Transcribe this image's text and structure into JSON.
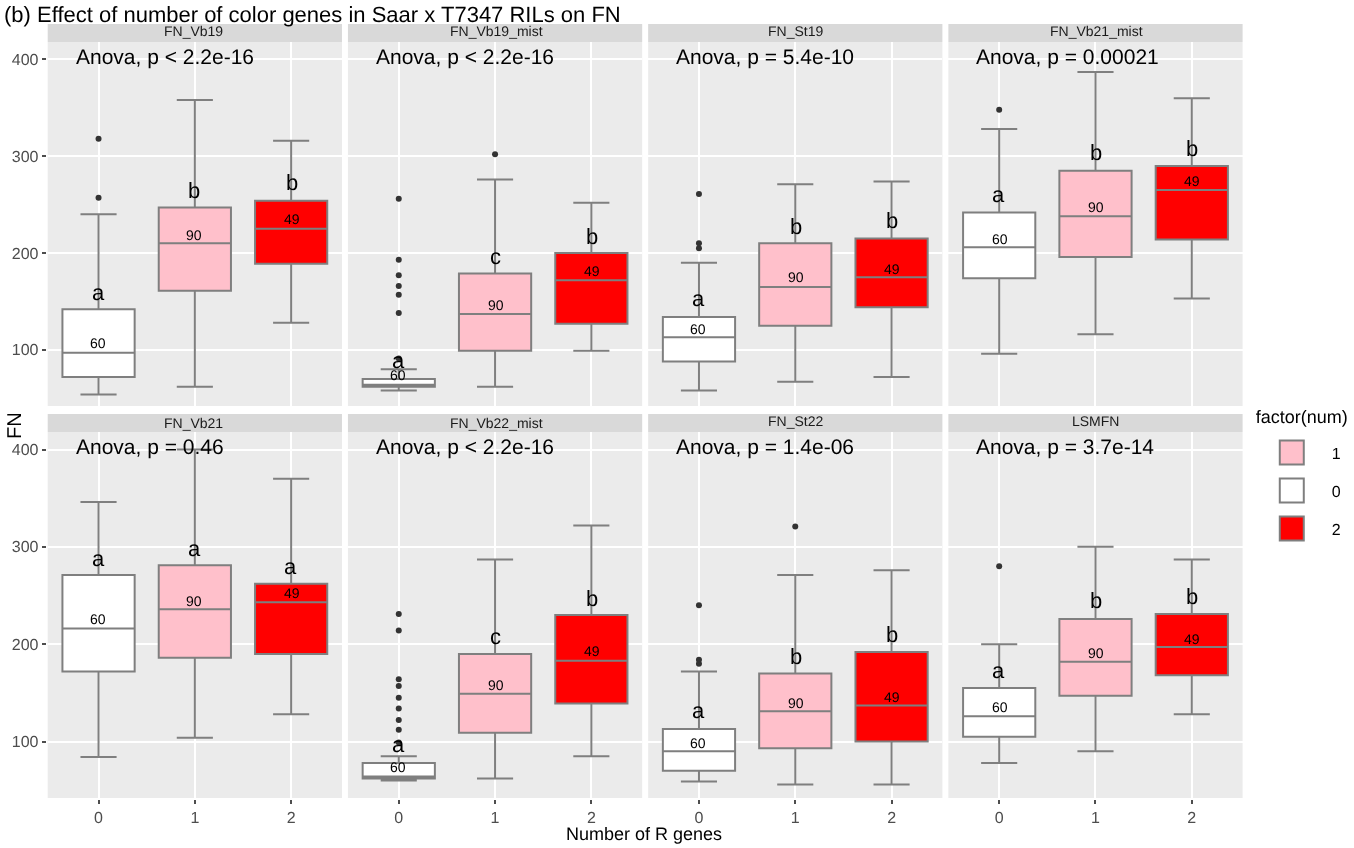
{
  "chart_data": [
    {
      "type": "box",
      "title": "FN_Vb19",
      "categories": [
        "0",
        "1",
        "2"
      ],
      "ylim": [
        42,
        418
      ],
      "yticks": [
        100,
        200,
        300,
        400
      ],
      "grid": true,
      "tick_labels": "y",
      "ylabel": "FN",
      "legend": "right",
      "legend_title": "factor(num)",
      "series": [
        {
          "name": "1",
          "color": "#ffc0cb",
          "boxes": [
            null,
            {
              "low": 62,
              "q1": 161,
              "median": 210,
              "q3": 247,
              "high": 358
            },
            null
          ]
        },
        {
          "name": "0",
          "color": "#ffffff",
          "boxes": [
            {
              "low": 54,
              "q1": 72,
              "median": 97,
              "q3": 142,
              "high": 240,
              "outliers": [
                257,
                318
              ]
            },
            null,
            null
          ]
        },
        {
          "name": "2",
          "color": "#ff0000",
          "boxes": [
            null,
            null,
            {
              "low": 128,
              "q1": 189,
              "median": 225,
              "q3": 254,
              "high": 316
            }
          ]
        }
      ],
      "annotations": [
        "Anova, p < 2.2e-16",
        "(b) Effect of number of color genes in Saar x T7347 RILs on FN",
        {
          "text": "a",
          "x": "0",
          "y": 142
        },
        {
          "text": "b",
          "x": "1",
          "y": 247
        },
        {
          "text": "b",
          "x": "2",
          "y": 254
        },
        {
          "text": "60",
          "x": "0",
          "y": 97
        },
        {
          "text": "90",
          "x": "1",
          "y": 210
        },
        {
          "text": "49",
          "x": "2",
          "y": 225
        }
      ]
    },
    {
      "type": "box",
      "title": "FN_Vb19_mist",
      "categories": [
        "0",
        "1",
        "2"
      ],
      "ylim": [
        42,
        418
      ],
      "yticks": [
        100,
        200,
        300,
        400
      ],
      "grid": true,
      "tick_labels": false,
      "series": [
        {
          "color": "#ffc0cb",
          "boxes": [
            null,
            {
              "low": 62,
              "q1": 99,
              "median": 137,
              "q3": 179,
              "high": 276,
              "outliers": [
                302
              ]
            },
            null
          ]
        },
        {
          "color": "#ffffff",
          "boxes": [
            {
              "low": 58,
              "q1": 62,
              "median": 64,
              "q3": 70,
              "high": 80,
              "outliers": [
                91,
                138,
                157,
                166,
                177,
                193,
                256
              ]
            },
            null,
            null
          ]
        },
        {
          "color": "#ff0000",
          "boxes": [
            null,
            null,
            {
              "low": 99,
              "q1": 127,
              "median": 172,
              "q3": 200,
              "high": 252
            }
          ]
        }
      ],
      "annotations": [
        "Anova, p < 2.2e-16",
        {
          "text": "a",
          "x": "0",
          "y": 70
        },
        {
          "text": "c",
          "x": "1",
          "y": 179
        },
        {
          "text": "b",
          "x": "2",
          "y": 200
        },
        {
          "text": "60",
          "x": "0",
          "y": 64
        },
        {
          "text": "90",
          "x": "1",
          "y": 137
        },
        {
          "text": "49",
          "x": "2",
          "y": 172
        }
      ]
    },
    {
      "type": "box",
      "title": "FN_St19",
      "categories": [
        "0",
        "1",
        "2"
      ],
      "ylim": [
        42,
        418
      ],
      "yticks": [
        100,
        200,
        300,
        400
      ],
      "grid": true,
      "tick_labels": false,
      "series": [
        {
          "color": "#ffc0cb",
          "boxes": [
            null,
            {
              "low": 67,
              "q1": 125,
              "median": 165,
              "q3": 210,
              "high": 271
            },
            null
          ]
        },
        {
          "color": "#ffffff",
          "boxes": [
            {
              "low": 58,
              "q1": 88,
              "median": 113,
              "q3": 134,
              "high": 190,
              "outliers": [
                205,
                210,
                261
              ]
            },
            null,
            null
          ]
        },
        {
          "color": "#ff0000",
          "boxes": [
            null,
            null,
            {
              "low": 72,
              "q1": 144,
              "median": 175,
              "q3": 215,
              "high": 274
            }
          ]
        }
      ],
      "annotations": [
        "Anova, p = 5.4e-10",
        {
          "text": "a",
          "x": "0",
          "y": 134
        },
        {
          "text": "b",
          "x": "1",
          "y": 210
        },
        {
          "text": "b",
          "x": "2",
          "y": 215
        },
        {
          "text": "60",
          "x": "0",
          "y": 113
        },
        {
          "text": "90",
          "x": "1",
          "y": 165
        },
        {
          "text": "49",
          "x": "2",
          "y": 175
        }
      ]
    },
    {
      "type": "box",
      "title": "FN_Vb21_mist",
      "categories": [
        "0",
        "1",
        "2"
      ],
      "ylim": [
        42,
        418
      ],
      "yticks": [
        100,
        200,
        300,
        400
      ],
      "grid": true,
      "tick_labels": false,
      "series": [
        {
          "color": "#ffc0cb",
          "boxes": [
            null,
            {
              "low": 116,
              "q1": 196,
              "median": 238,
              "q3": 285,
              "high": 387
            },
            null
          ]
        },
        {
          "color": "#ffffff",
          "boxes": [
            {
              "low": 96,
              "q1": 174,
              "median": 206,
              "q3": 242,
              "high": 328,
              "outliers": [
                348
              ]
            },
            null,
            null
          ]
        },
        {
          "color": "#ff0000",
          "boxes": [
            null,
            null,
            {
              "low": 153,
              "q1": 214,
              "median": 265,
              "q3": 290,
              "high": 360
            }
          ]
        }
      ],
      "annotations": [
        "Anova, p = 0.00021",
        {
          "text": "a",
          "x": "0",
          "y": 242
        },
        {
          "text": "b",
          "x": "1",
          "y": 285
        },
        {
          "text": "b",
          "x": "2",
          "y": 290
        },
        {
          "text": "60",
          "x": "0",
          "y": 206
        },
        {
          "text": "90",
          "x": "1",
          "y": 238
        },
        {
          "text": "49",
          "x": "2",
          "y": 265
        }
      ]
    },
    {
      "type": "box",
      "title": "FN_Vb21",
      "categories": [
        "0",
        "1",
        "2"
      ],
      "ylim": [
        42,
        418
      ],
      "yticks": [
        100,
        200,
        300,
        400
      ],
      "grid": true,
      "series": [
        {
          "color": "#ffc0cb",
          "boxes": [
            null,
            {
              "low": 104,
              "q1": 186,
              "median": 236,
              "q3": 281,
              "high": 400
            },
            null
          ]
        },
        {
          "color": "#ffffff",
          "boxes": [
            {
              "low": 84,
              "q1": 172,
              "median": 216,
              "q3": 271,
              "high": 346
            },
            null,
            null
          ]
        },
        {
          "color": "#ff0000",
          "boxes": [
            null,
            null,
            {
              "low": 128,
              "q1": 190,
              "median": 243,
              "q3": 262,
              "high": 370
            }
          ]
        }
      ],
      "annotations": [
        "Anova, p = 0.46",
        {
          "text": "a",
          "x": "0",
          "y": 271
        },
        {
          "text": "a",
          "x": "1",
          "y": 281
        },
        {
          "text": "a",
          "x": "2",
          "y": 262
        },
        {
          "text": "60",
          "x": "0",
          "y": 216
        },
        {
          "text": "90",
          "x": "1",
          "y": 236
        },
        {
          "text": "49",
          "x": "2",
          "y": 243
        }
      ]
    },
    {
      "type": "box",
      "title": "FN_Vb22_mist",
      "categories": [
        "0",
        "1",
        "2"
      ],
      "ylim": [
        42,
        418
      ],
      "yticks": [
        100,
        200,
        300,
        400
      ],
      "grid": true,
      "tick_labels": "x",
      "xlabel": "Number of R genes",
      "series": [
        {
          "color": "#ffc0cb",
          "boxes": [
            null,
            {
              "low": 62,
              "q1": 109,
              "median": 149,
              "q3": 190,
              "high": 287
            },
            null
          ]
        },
        {
          "color": "#ffffff",
          "boxes": [
            {
              "low": 60,
              "q1": 62,
              "median": 64,
              "q3": 78,
              "high": 85,
              "outliers": [
                99,
                112,
                122,
                134,
                145,
                157,
                164,
                214,
                231
              ]
            },
            null,
            null
          ]
        },
        {
          "color": "#ff0000",
          "boxes": [
            null,
            null,
            {
              "low": 85,
              "q1": 139,
              "median": 183,
              "q3": 230,
              "high": 322
            }
          ]
        }
      ],
      "annotations": [
        "Anova, p < 2.2e-16",
        {
          "text": "a",
          "x": "0",
          "y": 78
        },
        {
          "text": "c",
          "x": "1",
          "y": 190
        },
        {
          "text": "b",
          "x": "2",
          "y": 230
        },
        {
          "text": "60",
          "x": "0",
          "y": 64
        },
        {
          "text": "90",
          "x": "1",
          "y": 149
        },
        {
          "text": "49",
          "x": "2",
          "y": 183
        }
      ]
    },
    {
      "type": "box",
      "title": "FN_St22",
      "categories": [
        "0",
        "1",
        "2"
      ],
      "ylim": [
        42,
        418
      ],
      "yticks": [
        100,
        200,
        300,
        400
      ],
      "grid": true,
      "tick_labels": "x",
      "series": [
        {
          "color": "#ffc0cb",
          "boxes": [
            null,
            {
              "low": 56,
              "q1": 93,
              "median": 131,
              "q3": 170,
              "high": 271,
              "outliers": [
                321
              ]
            },
            null
          ]
        },
        {
          "color": "#ffffff",
          "boxes": [
            {
              "low": 59,
              "q1": 70,
              "median": 90,
              "q3": 113,
              "high": 172,
              "outliers": [
                180,
                184,
                240
              ]
            },
            null,
            null
          ]
        },
        {
          "color": "#ff0000",
          "boxes": [
            null,
            null,
            {
              "low": 56,
              "q1": 100,
              "median": 137,
              "q3": 192,
              "high": 276
            }
          ]
        }
      ],
      "annotations": [
        "Anova, p = 1.4e-06",
        {
          "text": "a",
          "x": "0",
          "y": 113
        },
        {
          "text": "b",
          "x": "1",
          "y": 170
        },
        {
          "text": "b",
          "x": "2",
          "y": 192
        },
        {
          "text": "60",
          "x": "0",
          "y": 90
        },
        {
          "text": "90",
          "x": "1",
          "y": 131
        },
        {
          "text": "49",
          "x": "2",
          "y": 137
        }
      ]
    },
    {
      "type": "box",
      "title": "LSMFN",
      "categories": [
        "0",
        "1",
        "2"
      ],
      "ylim": [
        42,
        418
      ],
      "yticks": [
        100,
        200,
        300,
        400
      ],
      "grid": true,
      "tick_labels": "x",
      "series": [
        {
          "color": "#ffc0cb",
          "boxes": [
            null,
            {
              "low": 90,
              "q1": 147,
              "median": 182,
              "q3": 226,
              "high": 300
            },
            null
          ]
        },
        {
          "color": "#ffffff",
          "boxes": [
            {
              "low": 78,
              "q1": 105,
              "median": 126,
              "q3": 155,
              "high": 200,
              "outliers": [
                280
              ]
            },
            null,
            null
          ]
        },
        {
          "color": "#ff0000",
          "boxes": [
            null,
            null,
            {
              "low": 128,
              "q1": 168,
              "median": 197,
              "q3": 231,
              "high": 287
            }
          ]
        }
      ],
      "annotations": [
        "Anova, p = 3.7e-14",
        {
          "text": "a",
          "x": "0",
          "y": 155
        },
        {
          "text": "b",
          "x": "1",
          "y": 226
        },
        {
          "text": "b",
          "x": "2",
          "y": 231
        },
        {
          "text": "60",
          "x": "0",
          "y": 126
        },
        {
          "text": "90",
          "x": "1",
          "y": 182
        },
        {
          "text": "49",
          "x": "2",
          "y": 197
        }
      ]
    }
  ]
}
